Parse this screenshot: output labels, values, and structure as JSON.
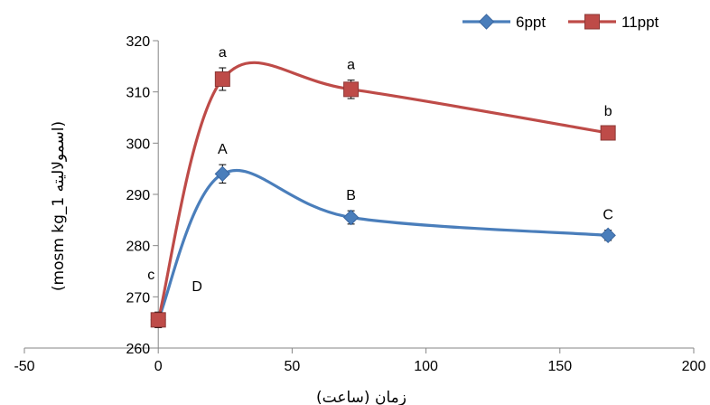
{
  "chart_data": {
    "type": "line",
    "title": "",
    "xlabel": "زمان (ساعت)",
    "ylabel": "(mosm kg_1  اسمولالیته)",
    "xlim": [
      -50,
      200
    ],
    "ylim": [
      260,
      320
    ],
    "x_ticks": [
      "-50",
      "0",
      "50",
      "100",
      "150",
      "200"
    ],
    "y_ticks": [
      "260",
      "270",
      "280",
      "290",
      "300",
      "310",
      "320"
    ],
    "legend_position": "top-right",
    "smoothed": true,
    "series": [
      {
        "name": "6ppt",
        "color": "#4a7ebb",
        "marker": "diamond",
        "points": [
          {
            "x": 0,
            "y": 265.5,
            "err": 1.5,
            "label": "D"
          },
          {
            "x": 24,
            "y": 294,
            "err": 1.8,
            "label": "A"
          },
          {
            "x": 72,
            "y": 285.5,
            "err": 1.3,
            "label": "B"
          },
          {
            "x": 168,
            "y": 282,
            "err": 1.0,
            "label": "C"
          }
        ]
      },
      {
        "name": "11ppt",
        "color": "#be4b48",
        "marker": "square",
        "points": [
          {
            "x": 0,
            "y": 265.5,
            "err": 1.5,
            "label": "c"
          },
          {
            "x": 24,
            "y": 312.5,
            "err": 2.2,
            "label": "a"
          },
          {
            "x": 72,
            "y": 310.5,
            "err": 1.8,
            "label": "a"
          },
          {
            "x": 168,
            "y": 302,
            "err": 1.2,
            "label": "b"
          }
        ]
      }
    ]
  }
}
